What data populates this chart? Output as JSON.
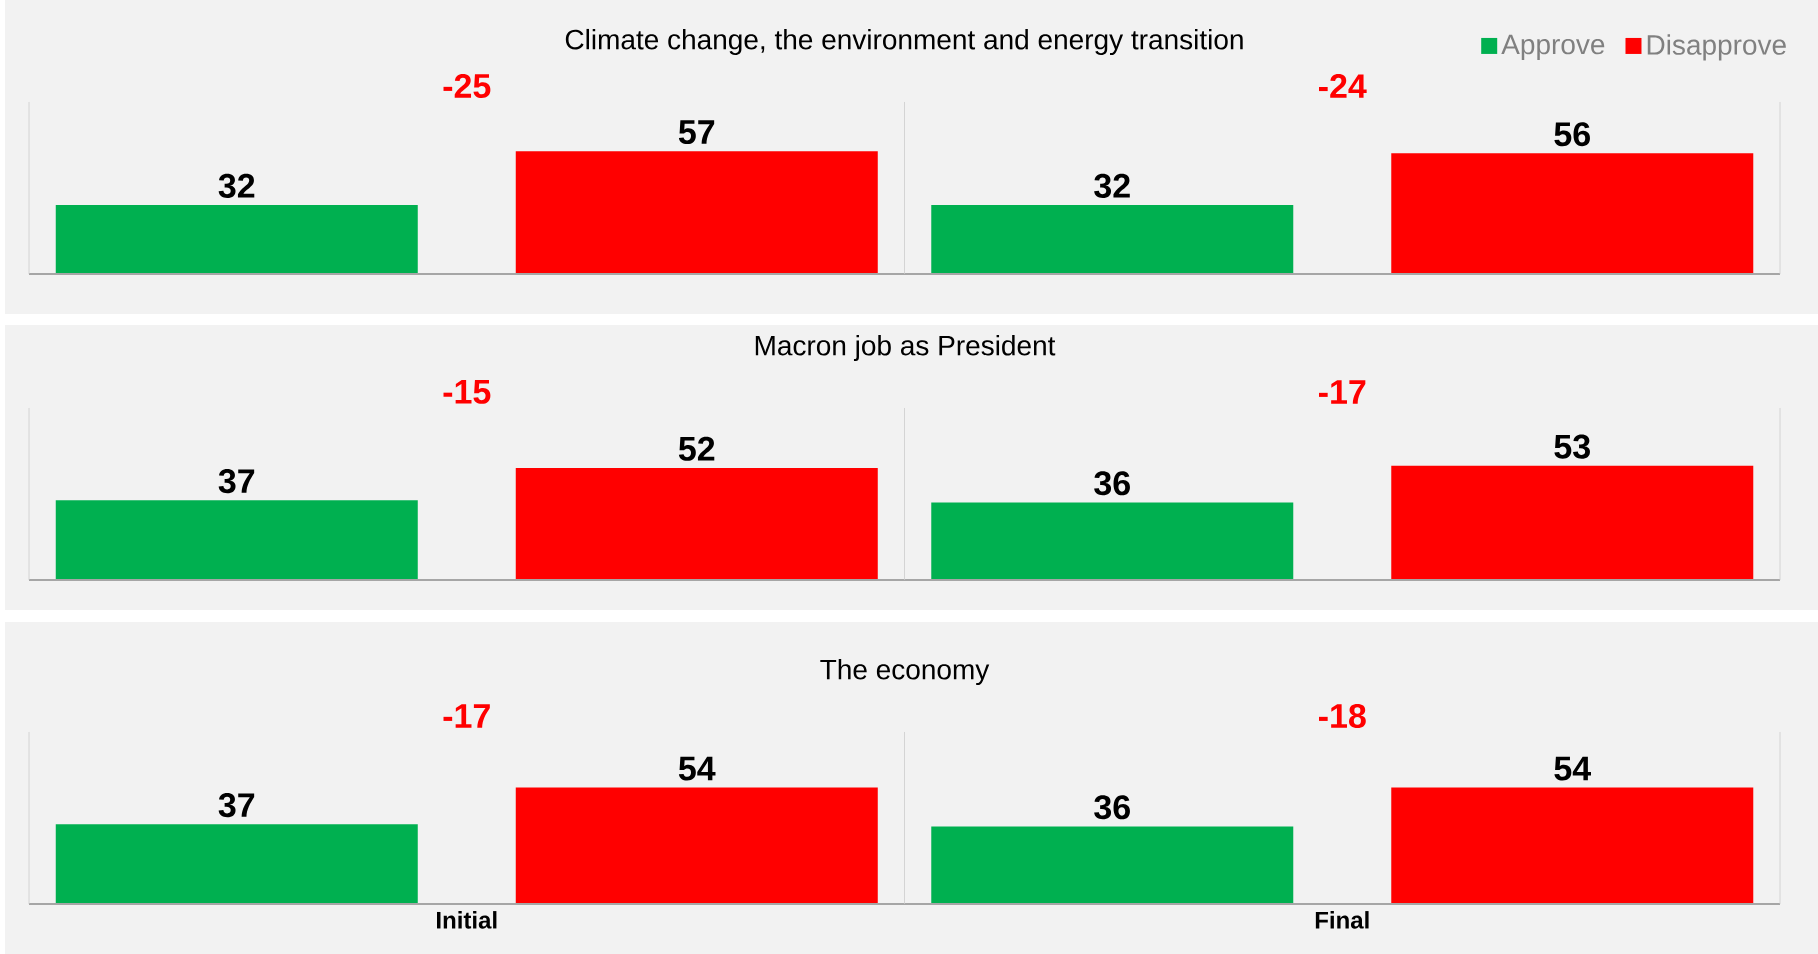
{
  "chart_data": [
    {
      "type": "bar",
      "title": "Climate change, the environment and energy transition",
      "categories": [
        null,
        null
      ],
      "series": [
        {
          "name": "Approve",
          "color": "#00b050",
          "values": [
            32,
            32
          ]
        },
        {
          "name": "Disapprove",
          "color": "#ff0000",
          "values": [
            57,
            56
          ]
        }
      ],
      "data_labels": true,
      "annotations": [
        "-25",
        "-24"
      ],
      "legend": "top right"
    },
    {
      "type": "bar",
      "title": "Macron job as President",
      "categories": [
        null,
        null
      ],
      "series": [
        {
          "color": "#00b050",
          "values": [
            37,
            36
          ]
        },
        {
          "color": "#ff0000",
          "values": [
            52,
            53
          ]
        }
      ],
      "data_labels": true,
      "annotations": [
        "-15",
        "-17"
      ]
    },
    {
      "type": "bar",
      "title": "The economy",
      "categories": [
        "Initial",
        "Final"
      ],
      "series": [
        {
          "color": "#00b050",
          "values": [
            37,
            36
          ]
        },
        {
          "color": "#ff0000",
          "values": [
            54,
            54
          ]
        }
      ],
      "data_labels": true,
      "annotations": [
        "-17",
        "-18"
      ],
      "tick_labels": "x"
    }
  ]
}
